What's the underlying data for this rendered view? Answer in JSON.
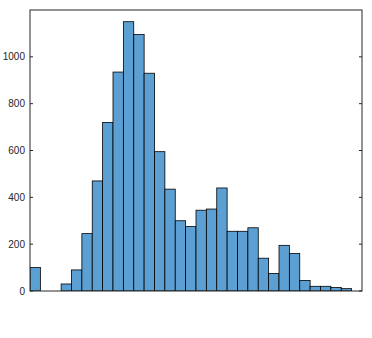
{
  "chart_data": {
    "type": "histogram",
    "bins": [
      0,
      1,
      2,
      3,
      4,
      5,
      6,
      7,
      8,
      9,
      10,
      11,
      12,
      13,
      14,
      15,
      16,
      17,
      18,
      19,
      20,
      21,
      22,
      23,
      24,
      25,
      26,
      27,
      28,
      29,
      30,
      31
    ],
    "values": [
      100,
      0,
      0,
      30,
      90,
      245,
      470,
      720,
      935,
      1150,
      1095,
      930,
      595,
      435,
      300,
      275,
      345,
      350,
      440,
      255,
      255,
      270,
      140,
      75,
      195,
      160,
      45,
      20,
      20,
      15,
      10
    ],
    "color": "#5ca0d3",
    "xlim": [
      0,
      32
    ],
    "ylim": [
      0,
      1200
    ],
    "yticks": [
      0,
      200,
      400,
      600,
      800,
      1000
    ],
    "grid": false,
    "tick_labels": "y"
  }
}
